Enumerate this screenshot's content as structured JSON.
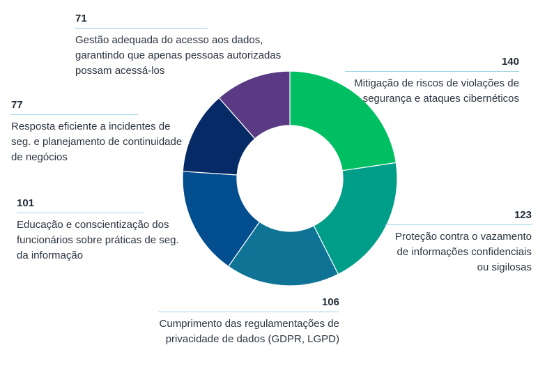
{
  "chart_data": {
    "type": "pie",
    "donut": true,
    "slices": [
      {
        "label": "Mitigação de riscos de violações de segurança e ataques cibernéticos",
        "value": 140,
        "color": "#00bf63"
      },
      {
        "label": "Proteção contra o vazamento de informações confidenciais ou sigilosas",
        "value": 123,
        "color": "#009e88"
      },
      {
        "label": "Cumprimento das regulamentações de privacidade de dados (GDPR, LGPD)",
        "value": 106,
        "color": "#0e7394"
      },
      {
        "label": "Educação e conscientização dos funcionários sobre práticas de seg. da informação",
        "value": 101,
        "color": "#034e8f"
      },
      {
        "label": "Resposta eficiente a incidentes de seg. e planejamento de continuidade de negócios",
        "value": 77,
        "color": "#062a66"
      },
      {
        "label": "Gestão adequada do acesso aos dados, garantindo que apenas pessoas autorizadas possam acessá-los",
        "value": 71,
        "color": "#5a3a82"
      }
    ]
  }
}
